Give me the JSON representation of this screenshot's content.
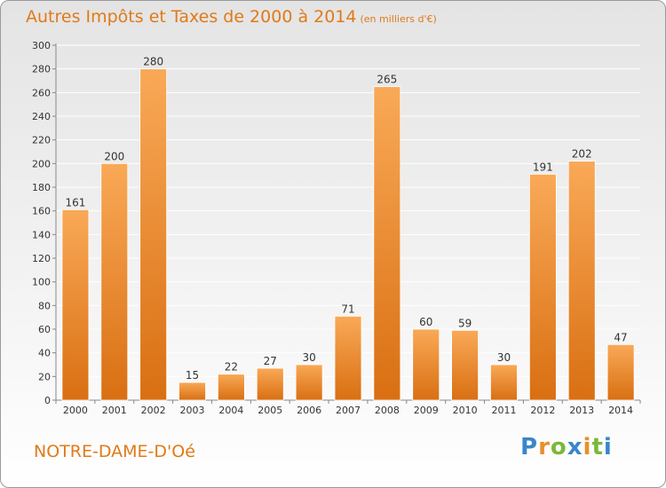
{
  "chart_data": {
    "type": "bar",
    "title": "Autres Impôts et Taxes de 2000 à 2014",
    "subtitle": "(en milliers d'€)",
    "categories": [
      "2000",
      "2001",
      "2002",
      "2003",
      "2004",
      "2005",
      "2006",
      "2007",
      "2008",
      "2009",
      "2010",
      "2011",
      "2012",
      "2013",
      "2014"
    ],
    "values": [
      161,
      200,
      280,
      15,
      22,
      27,
      30,
      71,
      265,
      60,
      59,
      30,
      191,
      202,
      47
    ],
    "ylim": [
      0,
      300
    ],
    "yticks": [
      0,
      20,
      40,
      60,
      80,
      100,
      120,
      140,
      160,
      180,
      200,
      220,
      240,
      260,
      280,
      300
    ],
    "grid": true,
    "bar_color": "#f0922e",
    "label_color": "#333333"
  },
  "footer": {
    "location": "NOTRE-DAME-D'Oé"
  },
  "logo": {
    "text": "Proxiti",
    "letters": [
      {
        "ch": "P",
        "color": "#3a86c8"
      },
      {
        "ch": "r",
        "color": "#e8902a"
      },
      {
        "ch": "o",
        "color": "#7ab83a"
      },
      {
        "ch": "x",
        "color": "#3a86c8"
      },
      {
        "ch": "i",
        "color": "#e8902a"
      },
      {
        "ch": "t",
        "color": "#7ab83a"
      },
      {
        "ch": "i",
        "color": "#3a86c8"
      }
    ]
  }
}
